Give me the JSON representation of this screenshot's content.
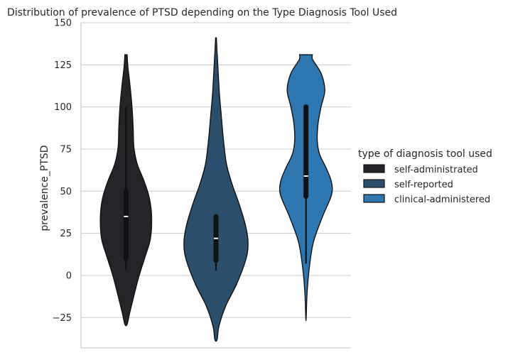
{
  "chart_data": {
    "type": "violin",
    "title": "Distribution of prevalence of PTSD depending on the Type  Diagnosis Tool Used",
    "xlabel": "",
    "ylabel": "prevalence_PTSD",
    "ylim": [
      -43,
      150
    ],
    "yticks": [
      150,
      125,
      100,
      75,
      50,
      25,
      0,
      -25
    ],
    "grid": "horizontal",
    "legend": {
      "title": "type of diagnosis tool used",
      "placement": "right"
    },
    "series": [
      {
        "name": "self-administrated",
        "color": "#232528",
        "kde_range": [
          -29,
          131
        ],
        "profile": [
          [
            -29,
            0.03
          ],
          [
            -22,
            0.1
          ],
          [
            -12,
            0.21
          ],
          [
            0,
            0.35
          ],
          [
            12,
            0.52
          ],
          [
            22,
            0.65
          ],
          [
            35,
            0.68
          ],
          [
            46,
            0.62
          ],
          [
            56,
            0.48
          ],
          [
            66,
            0.3
          ],
          [
            76,
            0.21
          ],
          [
            88,
            0.19
          ],
          [
            100,
            0.16
          ],
          [
            112,
            0.11
          ],
          [
            124,
            0.05
          ],
          [
            131,
            0.03
          ]
        ],
        "whisker": [
          3,
          100
        ],
        "q1": 10,
        "q3": 50,
        "median": 35
      },
      {
        "name": "self-reported",
        "color": "#2B4E6D",
        "kde_range": [
          -38,
          141
        ],
        "profile": [
          [
            -38,
            0.03
          ],
          [
            -30,
            0.08
          ],
          [
            -18,
            0.26
          ],
          [
            -5,
            0.55
          ],
          [
            10,
            0.8
          ],
          [
            20,
            0.85
          ],
          [
            30,
            0.78
          ],
          [
            42,
            0.62
          ],
          [
            54,
            0.43
          ],
          [
            66,
            0.28
          ],
          [
            80,
            0.2
          ],
          [
            95,
            0.14
          ],
          [
            108,
            0.09
          ],
          [
            120,
            0.06
          ],
          [
            132,
            0.03
          ],
          [
            141,
            0.01
          ]
        ],
        "whisker": [
          3,
          35
        ],
        "q1": 9,
        "q3": 35,
        "median": 22
      },
      {
        "name": "clinical-administered",
        "color": "#2E77B1",
        "kde_range": [
          -25,
          131
        ],
        "profile": [
          [
            -25,
            0.005
          ],
          [
            -10,
            0.03
          ],
          [
            5,
            0.09
          ],
          [
            20,
            0.2
          ],
          [
            35,
            0.44
          ],
          [
            48,
            0.68
          ],
          [
            56,
            0.67
          ],
          [
            64,
            0.53
          ],
          [
            72,
            0.36
          ],
          [
            80,
            0.3
          ],
          [
            90,
            0.32
          ],
          [
            100,
            0.4
          ],
          [
            110,
            0.5
          ],
          [
            120,
            0.4
          ],
          [
            128,
            0.18
          ],
          [
            131,
            0.17
          ]
        ],
        "whisker": [
          7,
          100
        ],
        "q1": 47,
        "q3": 100,
        "median": 59
      }
    ]
  }
}
